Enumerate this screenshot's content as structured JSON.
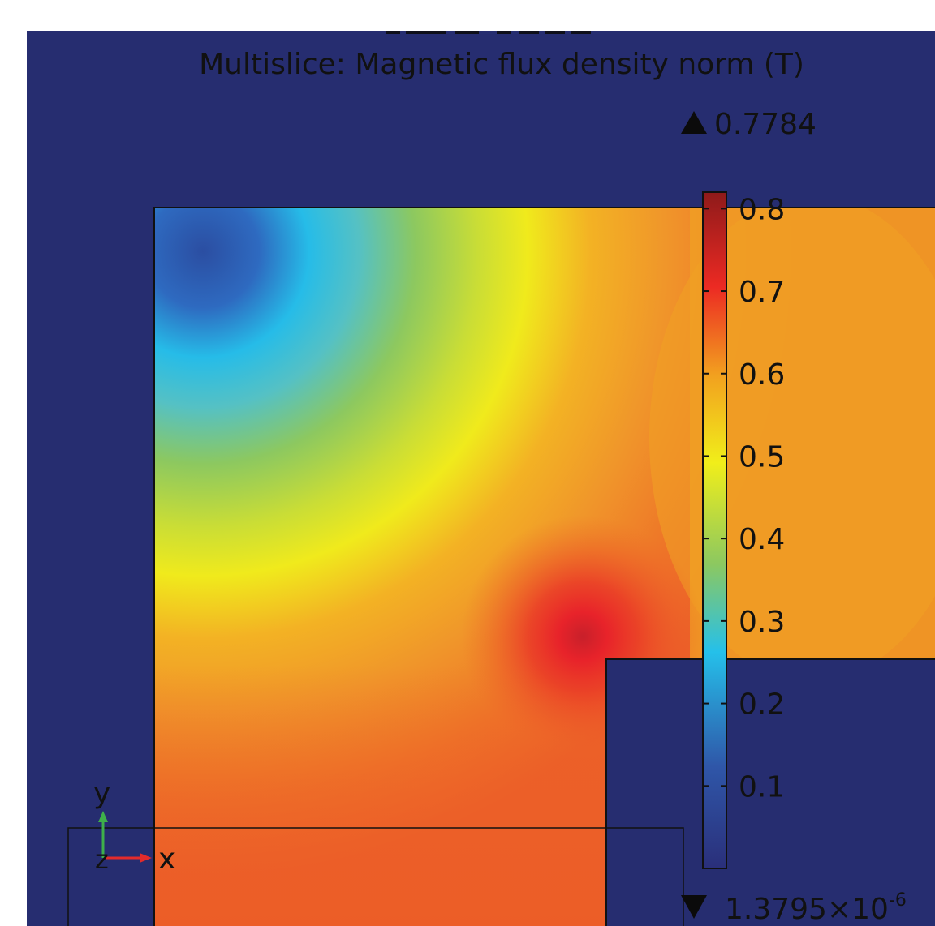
{
  "plot": {
    "title": "Multislice: Magnetic flux density norm (T)",
    "max_value": "0.7784",
    "min_value_mantissa": "1.3795×10",
    "min_value_exponent": "-6",
    "colorbar_ticks": [
      {
        "label": "0.8",
        "value": 0.8
      },
      {
        "label": "0.7",
        "value": 0.7
      },
      {
        "label": "0.6",
        "value": 0.6
      },
      {
        "label": "0.5",
        "value": 0.5
      },
      {
        "label": "0.4",
        "value": 0.4
      },
      {
        "label": "0.3",
        "value": 0.3
      },
      {
        "label": "0.2",
        "value": 0.2
      },
      {
        "label": "0.1",
        "value": 0.1
      }
    ],
    "colorbar_range": [
      0,
      0.82
    ],
    "colorbar_colors": [
      "#2a2f7a",
      "#2d6cc2",
      "#25c0ea",
      "#a8d450",
      "#f1ee1a",
      "#f2a01f",
      "#ec2a23",
      "#8e1a1a"
    ]
  },
  "axes": {
    "y_label": "y",
    "z_label": "z",
    "x_label": "x"
  },
  "colors": {
    "background": "#262d70",
    "orange": "#f0a024",
    "deep_orange": "#ed6328",
    "red": "#e8232a",
    "yellow": "#f0ea1c",
    "green": "#8cc860",
    "cyan": "#26b9e6",
    "blue": "#2f56a8",
    "x_axis": "#e32b2b",
    "y_axis": "#3eb04a"
  }
}
